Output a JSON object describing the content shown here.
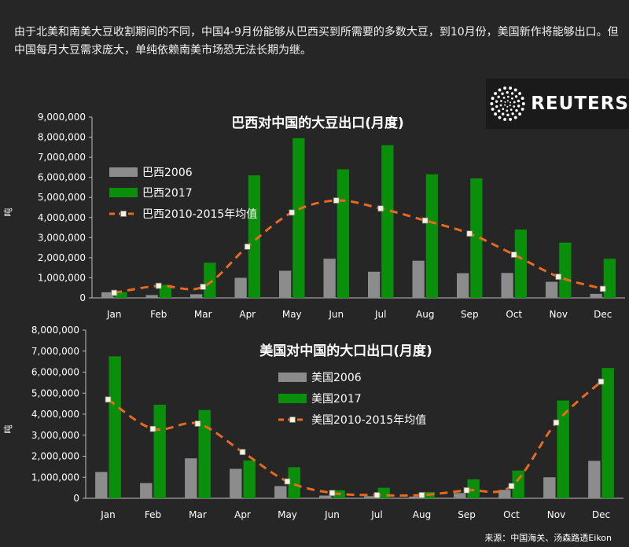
{
  "intro_text": "由于北美和南美大豆收割期间的不同，中国4-9月份能够从巴西买到所需要的多数大豆，到10月份，美国新作将能够出口。但中国每月大豆需求庞大，单纯依赖南美市场恐无法长期为继。",
  "logo_text": "REUTERS",
  "source_text": "来源：中国海关、汤森路透Eikon",
  "colors": {
    "background": "#262626",
    "bar_2006": "#8c8c8c",
    "bar_2017": "#0a8f0a",
    "avg_line": "#e86a1e",
    "avg_marker": "#f4f4dc"
  },
  "chart_data": [
    {
      "type": "bar",
      "title": "巴西对中国的大豆出口(月度)",
      "ylabel": "吨",
      "ylim": [
        0,
        9000000
      ],
      "yticks": [
        "0",
        "1,000,000",
        "2,000,000",
        "3,000,000",
        "4,000,000",
        "5,000,000",
        "6,000,000",
        "7,000,000",
        "8,000,000",
        "9,000,000"
      ],
      "categories": [
        "Jan",
        "Feb",
        "Mar",
        "Apr",
        "May",
        "Jun",
        "Jul",
        "Aug",
        "Sep",
        "Oct",
        "Nov",
        "Dec"
      ],
      "series": [
        {
          "name": "巴西2006",
          "kind": "bar",
          "values": [
            280000,
            140000,
            180000,
            1000000,
            1350000,
            1950000,
            1300000,
            1850000,
            1230000,
            1240000,
            800000,
            200000
          ]
        },
        {
          "name": "巴西2017",
          "kind": "bar",
          "values": [
            280000,
            650000,
            1750000,
            6100000,
            7950000,
            6400000,
            7600000,
            6150000,
            5950000,
            3400000,
            2750000,
            1950000
          ]
        },
        {
          "name": "巴西2010-2015年均值",
          "kind": "line",
          "values": [
            250000,
            600000,
            550000,
            2550000,
            4250000,
            4850000,
            4450000,
            3850000,
            3200000,
            2150000,
            1050000,
            450000
          ]
        }
      ],
      "legend_position": "top-left"
    },
    {
      "type": "bar",
      "title": "美国对中国的大口出口(月度)",
      "ylabel": "吨",
      "ylim": [
        0,
        8000000
      ],
      "yticks": [
        "0",
        "1,000,000",
        "2,000,000",
        "3,000,000",
        "4,000,000",
        "5,000,000",
        "6,000,000",
        "7,000,000",
        "8,000,000"
      ],
      "categories": [
        "Jan",
        "Feb",
        "Mar",
        "Apr",
        "May",
        "Jun",
        "Jul",
        "Aug",
        "Sep",
        "Oct",
        "Nov",
        "Dec"
      ],
      "series": [
        {
          "name": "美国2006",
          "kind": "bar",
          "values": [
            1250000,
            720000,
            1900000,
            1400000,
            580000,
            130000,
            100000,
            80000,
            250000,
            400000,
            1000000,
            1780000
          ]
        },
        {
          "name": "美国2017",
          "kind": "bar",
          "values": [
            6750000,
            4450000,
            4200000,
            1800000,
            1480000,
            380000,
            500000,
            300000,
            900000,
            1320000,
            4650000,
            6200000
          ]
        },
        {
          "name": "美国2010-2015年均值",
          "kind": "line",
          "values": [
            4700000,
            3300000,
            3550000,
            2200000,
            800000,
            250000,
            150000,
            150000,
            380000,
            580000,
            3600000,
            5550000
          ]
        }
      ],
      "legend_position": "top-left"
    }
  ]
}
